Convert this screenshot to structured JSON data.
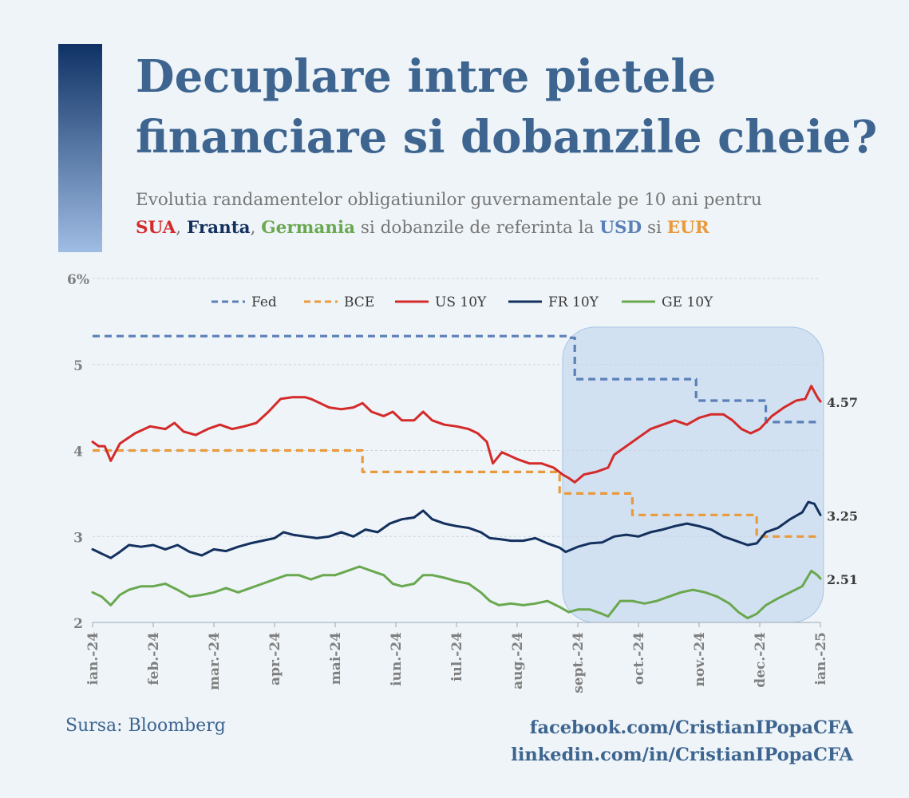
{
  "header": {
    "title_lines": [
      "Decuplare intre pietele",
      "financiare si dobanzile cheie?"
    ]
  },
  "subtitle": {
    "line1": "Evolutia randamentelor obligatiunilor guvernamentale pe 10 ani pentru",
    "parts": [
      {
        "text": "SUA",
        "color": "#d42a2a",
        "bold": true
      },
      {
        "text": ", ",
        "color": "#767676",
        "bold": false
      },
      {
        "text": "Franta",
        "color": "#13305e",
        "bold": true
      },
      {
        "text": ", ",
        "color": "#767676",
        "bold": false
      },
      {
        "text": "Germania",
        "color": "#6aa84f",
        "bold": true
      },
      {
        "text": " si dobanzile de referinta la ",
        "color": "#767676",
        "bold": false
      },
      {
        "text": "USD",
        "color": "#5b80b8",
        "bold": true
      },
      {
        "text": " si ",
        "color": "#767676",
        "bold": false
      },
      {
        "text": "EUR",
        "color": "#e89a3c",
        "bold": true
      }
    ]
  },
  "footer": {
    "source": "Sursa: Bloomberg",
    "facebook": "facebook.com/CristianIPopaCFA",
    "linkedin": "linkedin.com/in/CristianIPopaCFA"
  },
  "chart_data": {
    "type": "line",
    "ylim": [
      2,
      6
    ],
    "ytick_labels": [
      "2",
      "3",
      "4",
      "5",
      "6%"
    ],
    "yticks": [
      2,
      3,
      4,
      5,
      6
    ],
    "x_ticks": [
      "ian.-24",
      "feb.-24",
      "mar.-24",
      "apr.-24",
      "mai-24",
      "iun.-24",
      "iul.-24",
      "aug.-24",
      "sept.-24",
      "oct.-24",
      "nov.-24",
      "dec.-24",
      "ian.-25"
    ],
    "xlim_months": [
      0,
      12
    ],
    "grid": true,
    "legend_position": "top",
    "highlight_region_months": [
      7.75,
      12.05
    ],
    "highlight_color": "#cfe0f1",
    "series": [
      {
        "name": "Fed",
        "color": "#5b80b8",
        "dashed": true,
        "points": [
          [
            0,
            5.33
          ],
          [
            7.85,
            5.33
          ],
          [
            7.85,
            5.31
          ],
          [
            7.95,
            5.31
          ],
          [
            7.95,
            4.83
          ],
          [
            9.95,
            4.83
          ],
          [
            9.95,
            4.58
          ],
          [
            11.1,
            4.58
          ],
          [
            11.1,
            4.33
          ],
          [
            12,
            4.33
          ]
        ]
      },
      {
        "name": "BCE",
        "color": "#e89a3c",
        "dashed": true,
        "points": [
          [
            0,
            4.0
          ],
          [
            4.45,
            4.0
          ],
          [
            4.45,
            3.75
          ],
          [
            7.7,
            3.75
          ],
          [
            7.7,
            3.5
          ],
          [
            8.9,
            3.5
          ],
          [
            8.9,
            3.25
          ],
          [
            10.95,
            3.25
          ],
          [
            10.95,
            3.0
          ],
          [
            12,
            3.0
          ]
        ]
      },
      {
        "name": "US 10Y",
        "color": "#d42a2a",
        "dashed": false,
        "end_label": "4.57",
        "points": [
          [
            0,
            4.1
          ],
          [
            0.1,
            4.05
          ],
          [
            0.2,
            4.05
          ],
          [
            0.3,
            3.88
          ],
          [
            0.45,
            4.08
          ],
          [
            0.7,
            4.2
          ],
          [
            0.95,
            4.28
          ],
          [
            1.2,
            4.25
          ],
          [
            1.35,
            4.32
          ],
          [
            1.5,
            4.22
          ],
          [
            1.7,
            4.18
          ],
          [
            1.9,
            4.25
          ],
          [
            2.1,
            4.3
          ],
          [
            2.3,
            4.25
          ],
          [
            2.5,
            4.28
          ],
          [
            2.7,
            4.32
          ],
          [
            2.9,
            4.45
          ],
          [
            3.1,
            4.6
          ],
          [
            3.3,
            4.62
          ],
          [
            3.5,
            4.62
          ],
          [
            3.6,
            4.6
          ],
          [
            3.75,
            4.55
          ],
          [
            3.9,
            4.5
          ],
          [
            4.1,
            4.48
          ],
          [
            4.3,
            4.5
          ],
          [
            4.45,
            4.55
          ],
          [
            4.6,
            4.45
          ],
          [
            4.8,
            4.4
          ],
          [
            4.95,
            4.45
          ],
          [
            5.1,
            4.35
          ],
          [
            5.3,
            4.35
          ],
          [
            5.45,
            4.45
          ],
          [
            5.6,
            4.35
          ],
          [
            5.8,
            4.3
          ],
          [
            6.0,
            4.28
          ],
          [
            6.2,
            4.25
          ],
          [
            6.35,
            4.2
          ],
          [
            6.5,
            4.1
          ],
          [
            6.6,
            3.85
          ],
          [
            6.75,
            3.98
          ],
          [
            7.0,
            3.9
          ],
          [
            7.2,
            3.85
          ],
          [
            7.4,
            3.85
          ],
          [
            7.6,
            3.8
          ],
          [
            7.75,
            3.72
          ],
          [
            7.85,
            3.68
          ],
          [
            7.95,
            3.63
          ],
          [
            8.1,
            3.72
          ],
          [
            8.3,
            3.75
          ],
          [
            8.5,
            3.8
          ],
          [
            8.6,
            3.95
          ],
          [
            8.8,
            4.05
          ],
          [
            9.0,
            4.15
          ],
          [
            9.2,
            4.25
          ],
          [
            9.4,
            4.3
          ],
          [
            9.6,
            4.35
          ],
          [
            9.8,
            4.3
          ],
          [
            10.0,
            4.38
          ],
          [
            10.2,
            4.42
          ],
          [
            10.4,
            4.42
          ],
          [
            10.55,
            4.35
          ],
          [
            10.7,
            4.25
          ],
          [
            10.85,
            4.2
          ],
          [
            11.0,
            4.25
          ],
          [
            11.2,
            4.4
          ],
          [
            11.4,
            4.5
          ],
          [
            11.6,
            4.58
          ],
          [
            11.75,
            4.6
          ],
          [
            11.85,
            4.75
          ],
          [
            11.95,
            4.62
          ],
          [
            12.0,
            4.57
          ]
        ]
      },
      {
        "name": "FR 10Y",
        "color": "#13305e",
        "dashed": false,
        "end_label": "3.25",
        "points": [
          [
            0,
            2.85
          ],
          [
            0.15,
            2.8
          ],
          [
            0.3,
            2.75
          ],
          [
            0.45,
            2.82
          ],
          [
            0.6,
            2.9
          ],
          [
            0.8,
            2.88
          ],
          [
            1.0,
            2.9
          ],
          [
            1.2,
            2.85
          ],
          [
            1.4,
            2.9
          ],
          [
            1.6,
            2.82
          ],
          [
            1.8,
            2.78
          ],
          [
            2.0,
            2.85
          ],
          [
            2.2,
            2.83
          ],
          [
            2.4,
            2.88
          ],
          [
            2.6,
            2.92
          ],
          [
            2.8,
            2.95
          ],
          [
            3.0,
            2.98
          ],
          [
            3.15,
            3.05
          ],
          [
            3.3,
            3.02
          ],
          [
            3.5,
            3.0
          ],
          [
            3.7,
            2.98
          ],
          [
            3.9,
            3.0
          ],
          [
            4.1,
            3.05
          ],
          [
            4.3,
            3.0
          ],
          [
            4.5,
            3.08
          ],
          [
            4.7,
            3.05
          ],
          [
            4.9,
            3.15
          ],
          [
            5.1,
            3.2
          ],
          [
            5.3,
            3.22
          ],
          [
            5.45,
            3.3
          ],
          [
            5.6,
            3.2
          ],
          [
            5.8,
            3.15
          ],
          [
            6.0,
            3.12
          ],
          [
            6.2,
            3.1
          ],
          [
            6.4,
            3.05
          ],
          [
            6.55,
            2.98
          ],
          [
            6.7,
            2.97
          ],
          [
            6.9,
            2.95
          ],
          [
            7.1,
            2.95
          ],
          [
            7.3,
            2.98
          ],
          [
            7.5,
            2.92
          ],
          [
            7.7,
            2.87
          ],
          [
            7.8,
            2.82
          ],
          [
            8.0,
            2.88
          ],
          [
            8.2,
            2.92
          ],
          [
            8.4,
            2.93
          ],
          [
            8.6,
            3.0
          ],
          [
            8.8,
            3.02
          ],
          [
            9.0,
            3.0
          ],
          [
            9.2,
            3.05
          ],
          [
            9.4,
            3.08
          ],
          [
            9.6,
            3.12
          ],
          [
            9.8,
            3.15
          ],
          [
            10.0,
            3.12
          ],
          [
            10.2,
            3.08
          ],
          [
            10.4,
            3.0
          ],
          [
            10.6,
            2.95
          ],
          [
            10.8,
            2.9
          ],
          [
            10.95,
            2.92
          ],
          [
            11.1,
            3.05
          ],
          [
            11.3,
            3.1
          ],
          [
            11.5,
            3.2
          ],
          [
            11.7,
            3.28
          ],
          [
            11.8,
            3.4
          ],
          [
            11.9,
            3.38
          ],
          [
            12.0,
            3.25
          ]
        ]
      },
      {
        "name": "GE 10Y",
        "color": "#6aa84f",
        "dashed": false,
        "end_label": "2.51",
        "points": [
          [
            0,
            2.35
          ],
          [
            0.15,
            2.3
          ],
          [
            0.3,
            2.2
          ],
          [
            0.45,
            2.32
          ],
          [
            0.6,
            2.38
          ],
          [
            0.8,
            2.42
          ],
          [
            1.0,
            2.42
          ],
          [
            1.2,
            2.45
          ],
          [
            1.4,
            2.38
          ],
          [
            1.6,
            2.3
          ],
          [
            1.8,
            2.32
          ],
          [
            2.0,
            2.35
          ],
          [
            2.2,
            2.4
          ],
          [
            2.4,
            2.35
          ],
          [
            2.6,
            2.4
          ],
          [
            2.8,
            2.45
          ],
          [
            3.0,
            2.5
          ],
          [
            3.2,
            2.55
          ],
          [
            3.4,
            2.55
          ],
          [
            3.6,
            2.5
          ],
          [
            3.8,
            2.55
          ],
          [
            4.0,
            2.55
          ],
          [
            4.2,
            2.6
          ],
          [
            4.4,
            2.65
          ],
          [
            4.6,
            2.6
          ],
          [
            4.8,
            2.55
          ],
          [
            4.95,
            2.45
          ],
          [
            5.1,
            2.42
          ],
          [
            5.3,
            2.45
          ],
          [
            5.45,
            2.55
          ],
          [
            5.6,
            2.55
          ],
          [
            5.8,
            2.52
          ],
          [
            6.0,
            2.48
          ],
          [
            6.2,
            2.45
          ],
          [
            6.4,
            2.35
          ],
          [
            6.55,
            2.25
          ],
          [
            6.7,
            2.2
          ],
          [
            6.9,
            2.22
          ],
          [
            7.1,
            2.2
          ],
          [
            7.3,
            2.22
          ],
          [
            7.5,
            2.25
          ],
          [
            7.7,
            2.18
          ],
          [
            7.85,
            2.12
          ],
          [
            8.0,
            2.15
          ],
          [
            8.2,
            2.15
          ],
          [
            8.4,
            2.1
          ],
          [
            8.5,
            2.07
          ],
          [
            8.7,
            2.25
          ],
          [
            8.9,
            2.25
          ],
          [
            9.1,
            2.22
          ],
          [
            9.3,
            2.25
          ],
          [
            9.5,
            2.3
          ],
          [
            9.7,
            2.35
          ],
          [
            9.9,
            2.38
          ],
          [
            10.1,
            2.35
          ],
          [
            10.3,
            2.3
          ],
          [
            10.5,
            2.22
          ],
          [
            10.65,
            2.12
          ],
          [
            10.8,
            2.05
          ],
          [
            10.95,
            2.1
          ],
          [
            11.1,
            2.2
          ],
          [
            11.3,
            2.28
          ],
          [
            11.5,
            2.35
          ],
          [
            11.7,
            2.42
          ],
          [
            11.85,
            2.6
          ],
          [
            11.95,
            2.55
          ],
          [
            12.0,
            2.51
          ]
        ]
      }
    ]
  }
}
